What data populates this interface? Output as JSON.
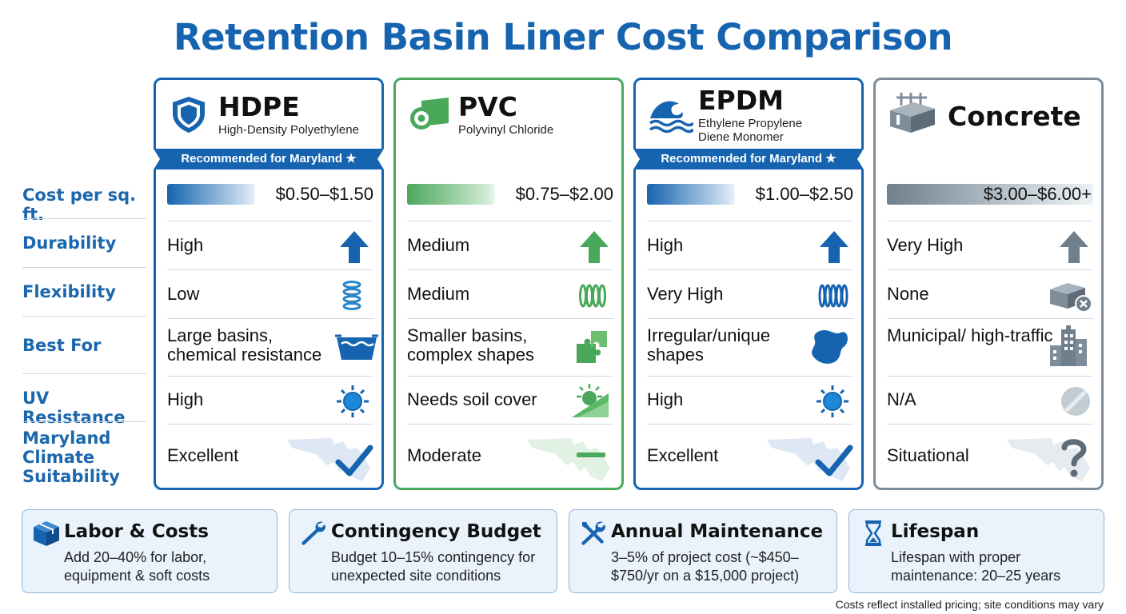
{
  "title": "Retention Basin Liner Cost Comparison",
  "row_labels": [
    "Cost per sq. ft.",
    "Durability",
    "Flexibility",
    "Best For",
    "UV Resistance",
    "Maryland Climate Suitability"
  ],
  "liners": [
    {
      "name": "HDPE",
      "subtitle": "High-Density Polyethylene",
      "badge": "Recommended for Maryland ★",
      "accent": "#1664b0",
      "icon": "shield-icon",
      "cost": "$0.50–$1.50",
      "durability": "High",
      "flexibility": "Low",
      "best_for": "Large basins, chemical resistance",
      "uv": "High",
      "maryland": "Excellent"
    },
    {
      "name": "PVC",
      "subtitle": "Polyvinyl Chloride",
      "badge": "",
      "accent": "#4aa85a",
      "icon": "liner-roll-icon",
      "cost": "$0.75–$2.00",
      "durability": "Medium",
      "flexibility": "Medium",
      "best_for": "Smaller basins, complex shapes",
      "uv": "Needs soil cover",
      "maryland": "Moderate"
    },
    {
      "name": "EPDM",
      "subtitle": "Ethylene Propylene Diene Monomer",
      "badge": "Recommended for Maryland ★",
      "accent": "#1664b0",
      "icon": "wave-icon",
      "cost": "$1.00–$2.50",
      "durability": "High",
      "flexibility": "Very High",
      "best_for": "Irregular/unique shapes",
      "uv": "High",
      "maryland": "Excellent"
    },
    {
      "name": "Concrete",
      "subtitle": "",
      "badge": "",
      "accent": "#6f7f8c",
      "icon": "concrete-block-icon",
      "cost": "$3.00–$6.00+",
      "durability": "Very High",
      "flexibility": "None",
      "best_for": "Municipal/ high-traffic",
      "uv": "N/A",
      "maryland": "Situational"
    }
  ],
  "footer_cards": [
    {
      "title": "Labor & Costs",
      "body": "Add 20–40% for labor, equipment & soft costs",
      "icon": "box-icon"
    },
    {
      "title": "Contingency Budget",
      "body": "Budget 10–15% contingency for unexpected site conditions",
      "icon": "wrench-icon"
    },
    {
      "title": "Annual Maintenance",
      "body": "3–5% of project cost (~$450–$750/yr on a $15,000 project)",
      "icon": "tools-icon"
    },
    {
      "title": "Lifespan",
      "body": "Lifespan with proper maintenance: 20–25 years",
      "icon": "hourglass-icon"
    }
  ],
  "footnote": "Costs reflect installed pricing; site conditions may vary"
}
